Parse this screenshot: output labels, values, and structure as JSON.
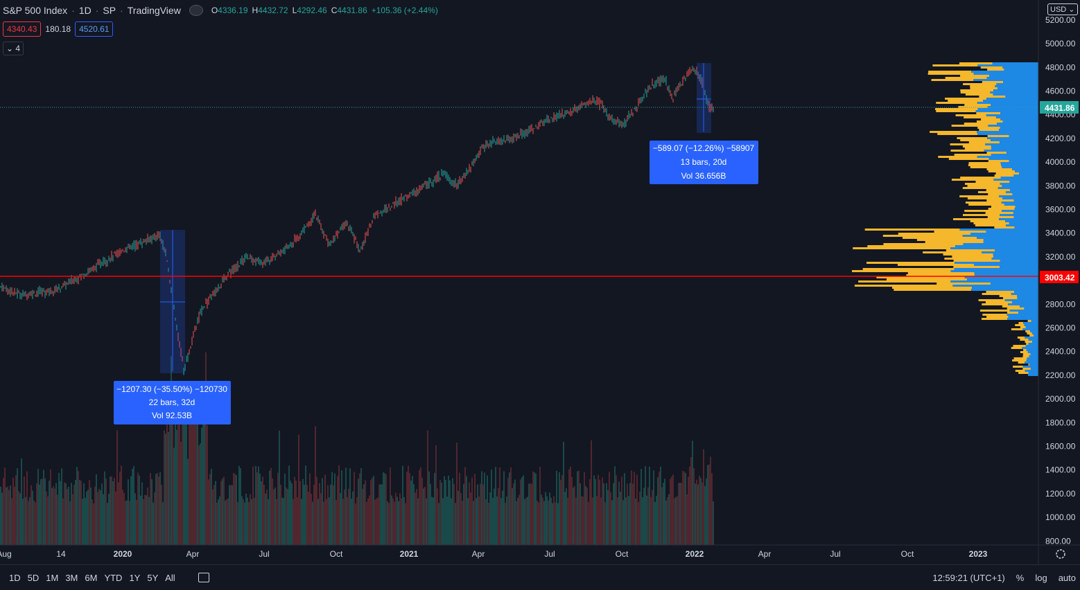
{
  "header": {
    "symbol": "S&P 500 Index",
    "interval": "1D",
    "exchange": "SP",
    "source": "TradingView",
    "ohlc": {
      "o": "4336.19",
      "h": "4432.72",
      "l": "4292.46",
      "c": "4431.86",
      "chg": "+105.36 (+2.44%)"
    }
  },
  "badges": {
    "sell": "4340.43",
    "spread": "180.18",
    "buy": "4520.61"
  },
  "collapse_label": "4",
  "currency_btn": "USD",
  "price_axis": {
    "ticks": [
      "5200.00",
      "5000.00",
      "4800.00",
      "4600.00",
      "4400.00",
      "4200.00",
      "4000.00",
      "3800.00",
      "3600.00",
      "3400.00",
      "3200.00",
      "3000.00",
      "2800.00",
      "2600.00",
      "2400.00",
      "2200.00",
      "2000.00",
      "1800.00",
      "1600.00",
      "1400.00",
      "1200.00",
      "1000.00",
      "800.00"
    ],
    "last_price_label": "4431.86",
    "line_label": "3003.42"
  },
  "time_axis": {
    "labels": [
      "Aug",
      "14",
      "2020",
      "Apr",
      "Jul",
      "Oct",
      "2021",
      "Apr",
      "Jul",
      "Oct",
      "2022",
      "Apr",
      "Jul",
      "Oct",
      "2023"
    ]
  },
  "measure_1": {
    "line1": "−1207.30 (−35.50%) −120730",
    "line2": "22 bars, 32d",
    "line3": "Vol 92.53B"
  },
  "measure_2": {
    "line1": "−589.07 (−12.26%) −58907",
    "line2": "13 bars, 20d",
    "line3": "Vol 36.656B"
  },
  "bottom_bar": {
    "ranges": [
      "1D",
      "5D",
      "1M",
      "3M",
      "6M",
      "YTD",
      "1Y",
      "5Y",
      "All"
    ],
    "time": "12:59:21 (UTC+1)",
    "pct": "%",
    "log": "log",
    "auto": "auto"
  },
  "colors": {
    "up": "#26a69a",
    "down": "#ef5350",
    "red_line": "#ff0000",
    "accent": "#2962ff",
    "vp_up": "#f5b72b",
    "vp_blue": "#1e88e5"
  },
  "chart_data": {
    "type": "line",
    "title": "S&P 500 Index",
    "x": [
      "2019-08",
      "2019-10",
      "2020-01",
      "2020-02-19",
      "2020-03-23",
      "2020-06",
      "2020-09",
      "2020-11",
      "2021-01",
      "2021-04",
      "2021-07",
      "2021-09",
      "2021-11",
      "2022-01-03",
      "2022-01-27"
    ],
    "series": [
      {
        "values": [
          2900,
          2950,
          3250,
          3386,
          2237,
          3100,
          3500,
          3550,
          3800,
          4180,
          4400,
          4500,
          4650,
          4800,
          4431.86
        ]
      }
    ],
    "ylim": [
      780,
      5250
    ],
    "horizontal_line": 3003.42,
    "last_price": 4431.86,
    "volume": {
      "range": [
        800,
        1900
      ]
    }
  }
}
